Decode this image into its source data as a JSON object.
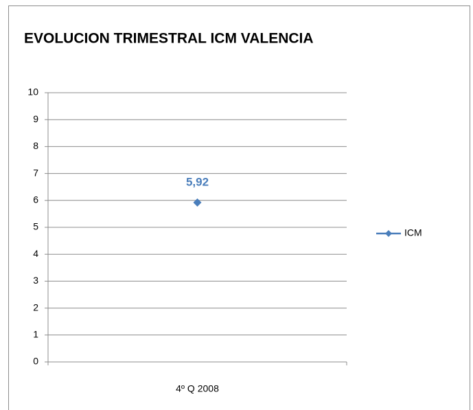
{
  "chart_data": {
    "type": "line",
    "title": "EVOLUCION TRIMESTRAL ICM VALENCIA",
    "categories": [
      "4º Q 2008"
    ],
    "series": [
      {
        "name": "ICM",
        "color": "#4a7ebb",
        "values": [
          5.92
        ],
        "value_labels": [
          "5,92"
        ]
      }
    ],
    "ylim": [
      0,
      10
    ],
    "yticks": [
      0,
      1,
      2,
      3,
      4,
      5,
      6,
      7,
      8,
      9,
      10
    ],
    "grid": true,
    "legend": "right"
  }
}
